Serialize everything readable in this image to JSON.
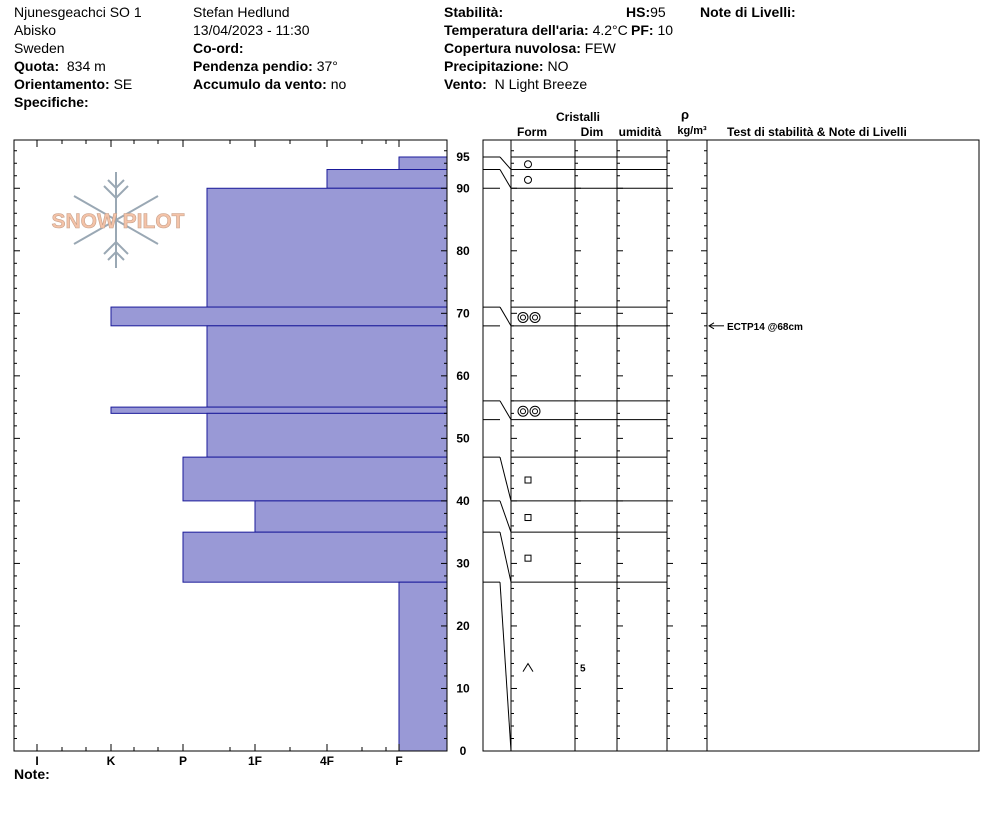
{
  "header": {
    "location": "Njunesgeachci SO 1",
    "region": "Abisko",
    "country": "Sweden",
    "quota_label": "Quota:",
    "quota_value": "834 m",
    "orientation_label": "Orientamento:",
    "orientation_value": "SE",
    "specifics_label": "Specifiche:",
    "observer": "Stefan Hedlund",
    "datetime": "13/04/2023 - 11:30",
    "coord_label": "Co-ord:",
    "slope_label": "Pendenza pendio:",
    "slope_value": "37°",
    "wind_load_label": "Accumulo da vento:",
    "wind_load_value": "no",
    "stability_label": "Stabilità:",
    "air_temp_label": "Temperatura dell'aria:",
    "air_temp_value": "4.2°C",
    "cloud_label": "Copertura nuvolosa:",
    "cloud_value": "FEW",
    "precip_label": "Precipitazione:",
    "precip_value": "NO",
    "wind_label": "Vento:",
    "wind_value": "N Light Breeze",
    "hs_label": "HS:",
    "hs_value": "95",
    "pf_label": "PF:",
    "pf_value": "10",
    "layer_notes_label": "Note di Livelli:",
    "note_label": "Note:"
  },
  "logo_text": "SNOW PILOT",
  "columns": {
    "crystals": "Cristalli",
    "form": "Form",
    "dim": "Dim",
    "humidity": "umidità",
    "rho": "ρ",
    "density_unit": "kg/m³",
    "tests": "Test di stabilità & Note di Livelli"
  },
  "chart_data": {
    "type": "bar",
    "orientation": "horizontal",
    "hardness_categories": [
      "I",
      "K",
      "P",
      "1F",
      "4F",
      "F"
    ],
    "y_ticks": [
      0,
      10,
      20,
      30,
      40,
      50,
      60,
      70,
      80,
      90,
      95
    ],
    "ylim": [
      0,
      95
    ],
    "layers": [
      {
        "top": 95,
        "bottom": 93,
        "hardness": "F"
      },
      {
        "top": 93,
        "bottom": 90,
        "hardness": "4F"
      },
      {
        "top": 90,
        "bottom": 71,
        "hardness": "1F-"
      },
      {
        "top": 71,
        "bottom": 68,
        "hardness": "K"
      },
      {
        "top": 68,
        "bottom": 55,
        "hardness": "1F-"
      },
      {
        "top": 55,
        "bottom": 54,
        "hardness": "K"
      },
      {
        "top": 54,
        "bottom": 47,
        "hardness": "1F-"
      },
      {
        "top": 47,
        "bottom": 40,
        "hardness": "P+"
      },
      {
        "top": 40,
        "bottom": 35,
        "hardness": "1F"
      },
      {
        "top": 35,
        "bottom": 27,
        "hardness": "P+"
      },
      {
        "top": 27,
        "bottom": 0,
        "hardness": "F"
      }
    ],
    "crystal_rows": [
      {
        "top": 95,
        "bottom": 93,
        "form": "circle",
        "dim": ""
      },
      {
        "top": 93,
        "bottom": 90,
        "form": "circle",
        "dim": ""
      },
      {
        "top": 71,
        "bottom": 68,
        "form": "double-circle",
        "dim": ""
      },
      {
        "top": 56,
        "bottom": 53,
        "form": "double-circle",
        "dim": ""
      },
      {
        "top": 47,
        "bottom": 40,
        "form": "square",
        "dim": ""
      },
      {
        "top": 40,
        "bottom": 35,
        "form": "square",
        "dim": ""
      },
      {
        "top": 35,
        "bottom": 27,
        "form": "square",
        "dim": ""
      },
      {
        "top": 27,
        "bottom": 0,
        "form": "caret",
        "dim": "5"
      }
    ],
    "stability_tests": [
      {
        "depth": 68,
        "text": "ECTP14 @68cm"
      }
    ]
  },
  "colors": {
    "bar_fill": "#9999d6",
    "bar_stroke": "#1a1a9a",
    "logo_fill": "#f4c3a8",
    "logo_stroke": "#9aa8b4"
  }
}
